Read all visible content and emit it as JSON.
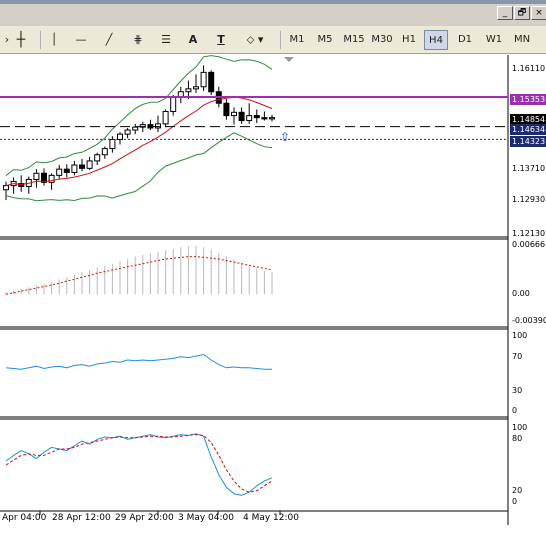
{
  "window_buttons": {
    "minimize": "_",
    "restore": "🗗",
    "close": "×"
  },
  "toolbar": {
    "timeframes": [
      "M1",
      "M5",
      "M15",
      "M30",
      "H1",
      "H4",
      "D1",
      "W1",
      "MN"
    ],
    "active_timeframe": "H4",
    "text_tool": "A",
    "text_label_tool": "T"
  },
  "price_panel": {
    "labels": [
      "1.16110",
      "1.15353",
      "1.14854",
      "1.14634",
      "1.14323",
      "1.13710",
      "1.12930",
      "1.12130"
    ],
    "badges": [
      {
        "text": "1.15353",
        "color": "#9b2fae"
      },
      {
        "text": "1.14854",
        "color": "#000000"
      },
      {
        "text": "1.14634",
        "color": "#1a2a6c"
      },
      {
        "text": "1.14323",
        "color": "#1a2a6c"
      }
    ]
  },
  "macd_panel": {
    "labels": [
      "0.00666",
      "0.00",
      "-0.00390"
    ]
  },
  "rsi_panel": {
    "labels": [
      "100",
      "70",
      "30",
      "0"
    ]
  },
  "stoch_panel": {
    "labels": [
      "100",
      "80",
      "20",
      "0"
    ]
  },
  "time_axis": {
    "labels": [
      "Apr 04:00",
      "28 Apr 12:00",
      "29 Apr 20:00",
      "3 May 04:00",
      "4 May 12:00"
    ]
  },
  "chart_data": {
    "type": "candlestick",
    "candles": [
      {
        "o": 1.131,
        "h": 1.133,
        "l": 1.1285,
        "c": 1.132
      },
      {
        "o": 1.132,
        "h": 1.134,
        "l": 1.13,
        "c": 1.133
      },
      {
        "o": 1.1325,
        "h": 1.1345,
        "l": 1.1305,
        "c": 1.1318
      },
      {
        "o": 1.1318,
        "h": 1.1342,
        "l": 1.13,
        "c": 1.1335
      },
      {
        "o": 1.1335,
        "h": 1.136,
        "l": 1.1315,
        "c": 1.135
      },
      {
        "o": 1.135,
        "h": 1.1362,
        "l": 1.132,
        "c": 1.1328
      },
      {
        "o": 1.1328,
        "h": 1.135,
        "l": 1.131,
        "c": 1.1345
      },
      {
        "o": 1.1345,
        "h": 1.137,
        "l": 1.1335,
        "c": 1.136
      },
      {
        "o": 1.136,
        "h": 1.1372,
        "l": 1.134,
        "c": 1.1352
      },
      {
        "o": 1.1352,
        "h": 1.138,
        "l": 1.1345,
        "c": 1.137
      },
      {
        "o": 1.137,
        "h": 1.1385,
        "l": 1.1355,
        "c": 1.1362
      },
      {
        "o": 1.1362,
        "h": 1.139,
        "l": 1.1358,
        "c": 1.138
      },
      {
        "o": 1.138,
        "h": 1.14,
        "l": 1.137,
        "c": 1.1395
      },
      {
        "o": 1.1395,
        "h": 1.1415,
        "l": 1.1385,
        "c": 1.141
      },
      {
        "o": 1.141,
        "h": 1.144,
        "l": 1.14,
        "c": 1.1432
      },
      {
        "o": 1.1432,
        "h": 1.145,
        "l": 1.142,
        "c": 1.1445
      },
      {
        "o": 1.1445,
        "h": 1.146,
        "l": 1.1435,
        "c": 1.1455
      },
      {
        "o": 1.1455,
        "h": 1.147,
        "l": 1.1445,
        "c": 1.1462
      },
      {
        "o": 1.1462,
        "h": 1.1475,
        "l": 1.145,
        "c": 1.1468
      },
      {
        "o": 1.1468,
        "h": 1.148,
        "l": 1.1455,
        "c": 1.146
      },
      {
        "o": 1.146,
        "h": 1.149,
        "l": 1.145,
        "c": 1.147
      },
      {
        "o": 1.147,
        "h": 1.1505,
        "l": 1.1462,
        "c": 1.15
      },
      {
        "o": 1.15,
        "h": 1.154,
        "l": 1.149,
        "c": 1.1535
      },
      {
        "o": 1.1535,
        "h": 1.156,
        "l": 1.152,
        "c": 1.1548
      },
      {
        "o": 1.1548,
        "h": 1.1575,
        "l": 1.153,
        "c": 1.1555
      },
      {
        "o": 1.1555,
        "h": 1.159,
        "l": 1.1545,
        "c": 1.156
      },
      {
        "o": 1.156,
        "h": 1.1612,
        "l": 1.155,
        "c": 1.1595
      },
      {
        "o": 1.1595,
        "h": 1.16,
        "l": 1.154,
        "c": 1.1548
      },
      {
        "o": 1.1548,
        "h": 1.156,
        "l": 1.151,
        "c": 1.152
      },
      {
        "o": 1.152,
        "h": 1.153,
        "l": 1.148,
        "c": 1.149
      },
      {
        "o": 1.149,
        "h": 1.151,
        "l": 1.1468,
        "c": 1.1498
      },
      {
        "o": 1.1498,
        "h": 1.151,
        "l": 1.147,
        "c": 1.1478
      },
      {
        "o": 1.1478,
        "h": 1.152,
        "l": 1.147,
        "c": 1.149
      },
      {
        "o": 1.149,
        "h": 1.1505,
        "l": 1.1472,
        "c": 1.1485
      },
      {
        "o": 1.1485,
        "h": 1.15,
        "l": 1.1478,
        "c": 1.1482
      },
      {
        "o": 1.1482,
        "h": 1.1492,
        "l": 1.1476,
        "c": 1.1485
      }
    ],
    "hlines": [
      {
        "price": 1.15353,
        "style": "solid",
        "color": "#9b2fae"
      },
      {
        "price": 1.14634,
        "style": "dashed",
        "color": "#000000"
      },
      {
        "price": 1.14323,
        "style": "dotted",
        "color": "#1a2a6c"
      }
    ],
    "price_range": [
      1.1205,
      1.1625
    ],
    "macd_hist": [
      0.0003,
      0.0005,
      0.0007,
      0.0009,
      0.0011,
      0.0013,
      0.0016,
      0.0019,
      0.0022,
      0.0025,
      0.0028,
      0.0031,
      0.0034,
      0.0036,
      0.0039,
      0.0042,
      0.0045,
      0.0048,
      0.005,
      0.0052,
      0.0054,
      0.0056,
      0.0058,
      0.006,
      0.0061,
      0.0062,
      0.006,
      0.0057,
      0.0053,
      0.0048,
      0.0044,
      0.004,
      0.0036,
      0.0033,
      0.003,
      0.0028
    ],
    "macd_signal": [
      0.0,
      0.0002,
      0.0004,
      0.0006,
      0.0008,
      0.001,
      0.0012,
      0.0014,
      0.0017,
      0.0019,
      0.0022,
      0.0024,
      0.0027,
      0.0029,
      0.0031,
      0.0033,
      0.0035,
      0.0037,
      0.0039,
      0.0041,
      0.0043,
      0.0045,
      0.0046,
      0.0047,
      0.0048,
      0.0048,
      0.0047,
      0.0046,
      0.0045,
      0.0043,
      0.0041,
      0.0039,
      0.0037,
      0.0035,
      0.0033,
      0.0031
    ],
    "macd_range": [
      -0.0039,
      0.00666
    ],
    "rsi": [
      58,
      57,
      56,
      58,
      60,
      57,
      59,
      60,
      58,
      61,
      62,
      60,
      63,
      64,
      66,
      65,
      68,
      67,
      68,
      67,
      68,
      69,
      70,
      72,
      71,
      73,
      75,
      68,
      62,
      58,
      59,
      58,
      58,
      57,
      56,
      56
    ],
    "stoch_main": [
      55,
      62,
      68,
      64,
      58,
      66,
      72,
      70,
      68,
      74,
      80,
      76,
      82,
      85,
      84,
      86,
      82,
      84,
      86,
      88,
      85,
      84,
      86,
      88,
      87,
      89,
      86,
      60,
      38,
      22,
      14,
      12,
      16,
      24,
      30,
      34
    ],
    "stoch_signal": [
      50,
      56,
      62,
      64,
      62,
      62,
      66,
      70,
      70,
      72,
      76,
      78,
      80,
      82,
      84,
      85,
      84,
      84,
      85,
      86,
      86,
      85,
      85,
      86,
      87,
      88,
      87,
      78,
      62,
      44,
      30,
      20,
      16,
      18,
      24,
      30
    ]
  }
}
